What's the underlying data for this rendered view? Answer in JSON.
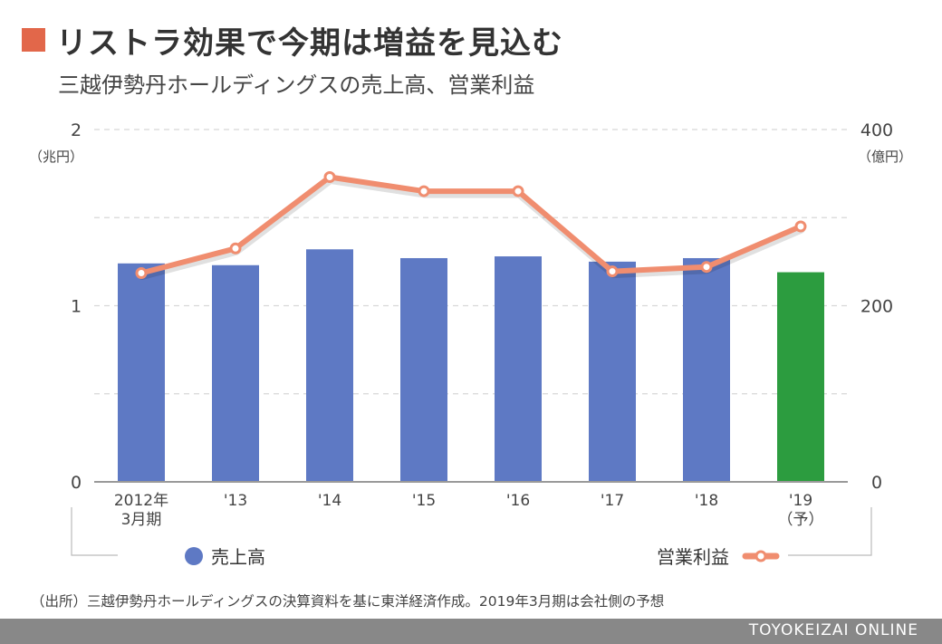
{
  "title": "リストラ効果で今期は増益を見込む",
  "subtitle": "三越伊勢丹ホールディングスの売上高、営業利益",
  "footnote": "（出所）三越伊勢丹ホールディングスの決算資料を基に東洋経済作成。2019年3月期は会社側の予想",
  "footer": "TOYOKEIZAI ONLINE",
  "colors": {
    "accent": "#e2674a",
    "bar": "#5e79c4",
    "bar_forecast": "#2c9c3f",
    "line": "#f08d6f",
    "footer_bg": "#888888"
  },
  "chart_data": {
    "type": "bar",
    "categories": [
      [
        "2012年",
        "3月期"
      ],
      [
        "'13"
      ],
      [
        "'14"
      ],
      [
        "'15"
      ],
      [
        "'16"
      ],
      [
        "'17"
      ],
      [
        "'18"
      ],
      [
        "'19",
        "（予）"
      ]
    ],
    "left_axis": {
      "unit": "（兆円）",
      "ticks": [
        "0",
        "1",
        "2"
      ],
      "range": [
        0,
        2
      ]
    },
    "right_axis": {
      "unit": "（億円）",
      "ticks": [
        "0",
        "200",
        "400"
      ],
      "range": [
        0,
        400
      ]
    },
    "series": [
      {
        "name": "売上高",
        "type": "bar",
        "axis": "left",
        "values": [
          1.24,
          1.23,
          1.32,
          1.27,
          1.28,
          1.25,
          1.27,
          1.19
        ]
      },
      {
        "name": "営業利益",
        "type": "line",
        "axis": "right",
        "values": [
          237,
          265,
          346,
          330,
          330,
          239,
          244,
          290
        ]
      }
    ],
    "grid": true,
    "legend": "bottom"
  }
}
